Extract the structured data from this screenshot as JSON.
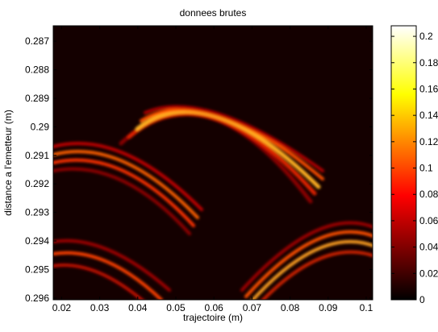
{
  "chart_data": {
    "type": "heatmap",
    "title": "donnees brutes",
    "xlabel": "trajectoire (m)",
    "ylabel": "distance a l'emetteur (m)",
    "xlim": [
      0.0178,
      0.1017
    ],
    "xticks": [
      0.02,
      0.03,
      0.04,
      0.05,
      0.06,
      0.07,
      0.08,
      0.09,
      0.1
    ],
    "ylim": [
      0.28646,
      0.29606
    ],
    "yticks": [
      0.287,
      0.288,
      0.289,
      0.29,
      0.291,
      0.292,
      0.293,
      0.294,
      0.295,
      0.296
    ],
    "y_reversed": true,
    "clim": [
      0,
      0.208
    ],
    "cticks": [
      0,
      0.02,
      0.04,
      0.06,
      0.08,
      0.1,
      0.12,
      0.14,
      0.16,
      0.18,
      0.2
    ],
    "colormap": "hot"
  }
}
